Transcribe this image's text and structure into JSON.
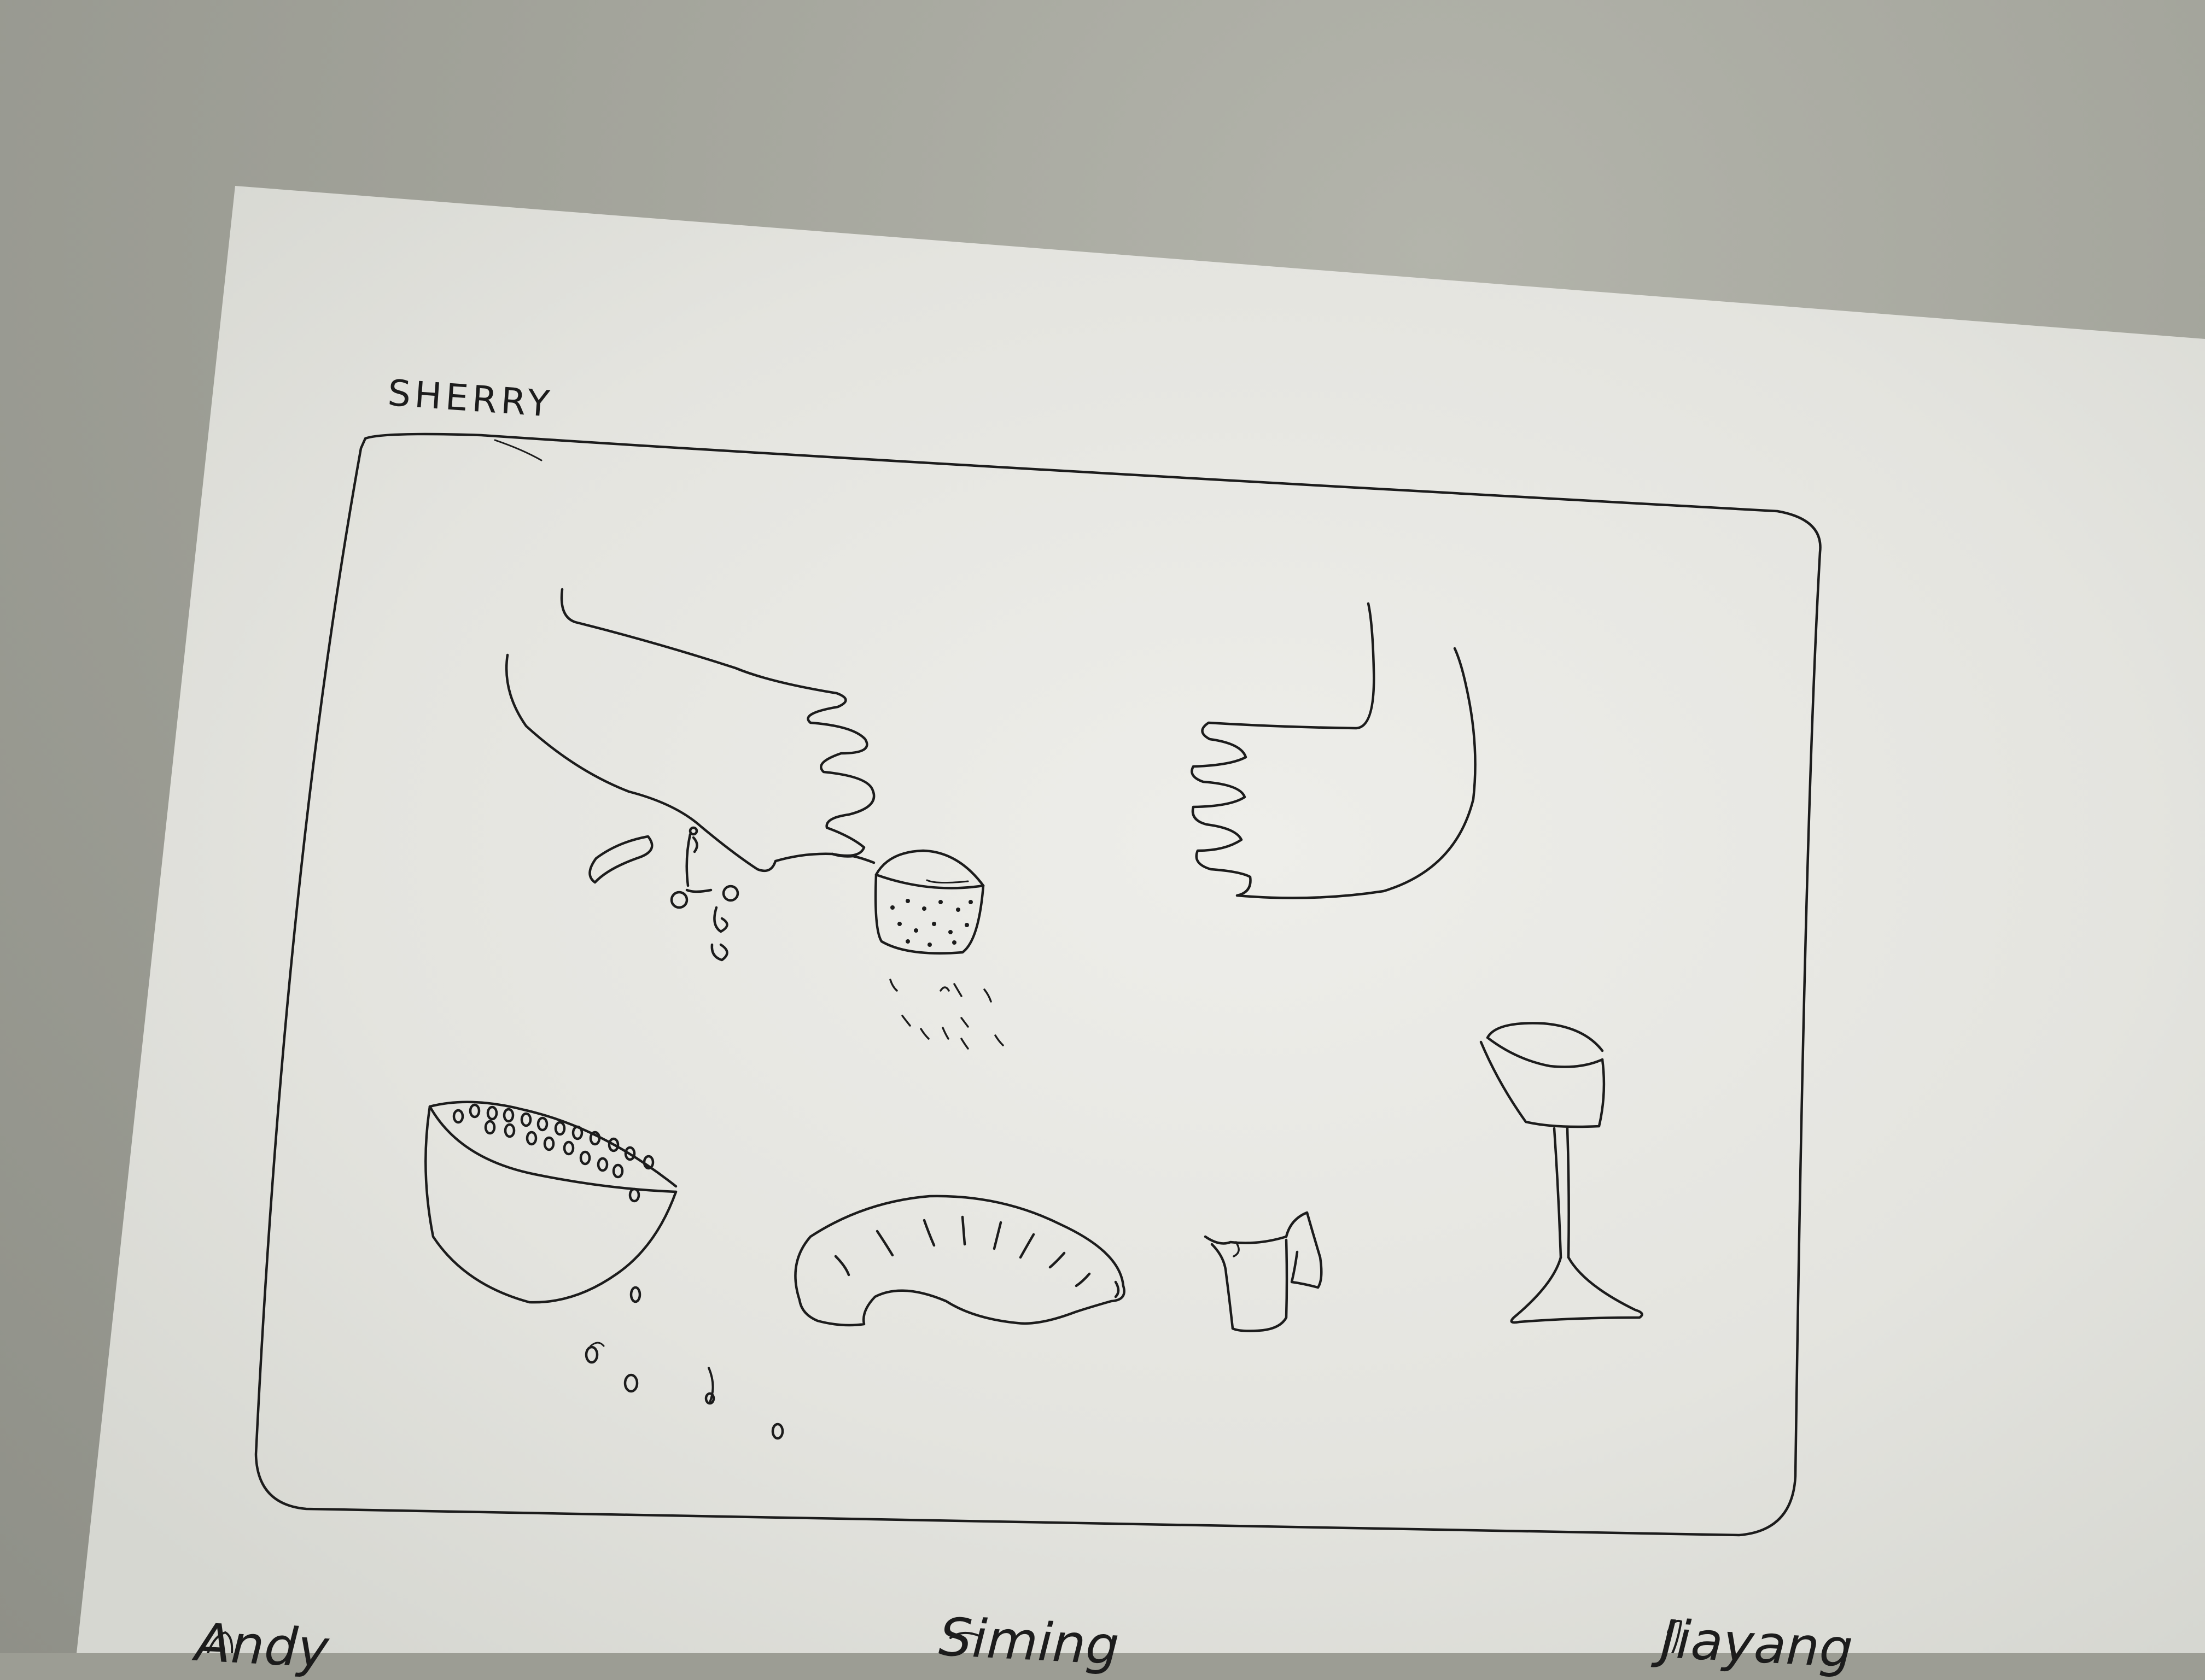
{
  "sheet": {
    "title": "SHERRY"
  },
  "storyboard": {
    "sketches": [
      {
        "name": "hand-pouring-icon"
      },
      {
        "name": "hand-receiving-icon"
      },
      {
        "name": "bowl-with-beans-icon"
      },
      {
        "name": "croissant-icon"
      },
      {
        "name": "cup-icon"
      },
      {
        "name": "wine-glass-icon"
      }
    ]
  },
  "names_row": {
    "left": "Andy",
    "middle": "Siming",
    "right": "Jiayang"
  },
  "colors": {
    "desk": "#a2a39a",
    "paper": "#e8e8e3",
    "ink": "#1c1c1c"
  }
}
